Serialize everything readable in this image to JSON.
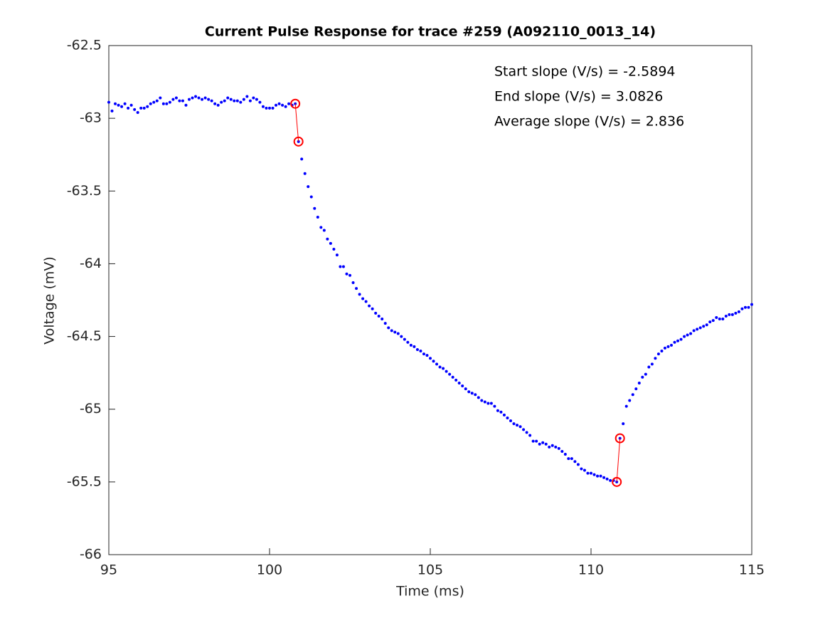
{
  "chart_data": {
    "type": "scatter",
    "title": "Current Pulse Response for trace #259 (A092110_0013_14)",
    "xlabel": "Time (ms)",
    "ylabel": "Voltage (mV)",
    "annotations": [
      "Start slope (V/s) = -2.5894",
      "End slope (V/s) = 3.0826",
      "Average slope (V/s) = 2.836"
    ],
    "xlim": [
      95,
      115
    ],
    "xticks": [
      95,
      100,
      105,
      110,
      115
    ],
    "ylim": [
      -66,
      -62.5
    ],
    "yticks": [
      -66,
      -65.5,
      -65,
      -64.5,
      -64,
      -63.5,
      -63,
      -62.5
    ],
    "series": [
      {
        "color": "#0000ff",
        "marker": "dot",
        "line": false,
        "x": [
          95,
          95.1,
          95.2,
          95.3,
          95.4,
          95.5,
          95.6,
          95.7,
          95.8,
          95.9,
          96,
          96.1,
          96.2,
          96.3,
          96.4,
          96.5,
          96.6,
          96.7,
          96.8,
          96.9,
          97,
          97.1,
          97.2,
          97.3,
          97.4,
          97.5,
          97.6,
          97.7,
          97.8,
          97.9,
          98,
          98.1,
          98.2,
          98.3,
          98.4,
          98.5,
          98.6,
          98.7,
          98.8,
          98.9,
          99,
          99.1,
          99.2,
          99.3,
          99.4,
          99.5,
          99.6,
          99.7,
          99.8,
          99.9,
          100,
          100.1,
          100.2,
          100.3,
          100.4,
          100.5,
          100.6,
          100.7,
          100.8,
          100.9,
          101,
          101.1,
          101.2,
          101.3,
          101.4,
          101.5,
          101.6,
          101.7,
          101.8,
          101.9,
          102,
          102.1,
          102.2,
          102.3,
          102.4,
          102.5,
          102.6,
          102.7,
          102.8,
          102.9,
          103,
          103.1,
          103.2,
          103.3,
          103.4,
          103.5,
          103.6,
          103.7,
          103.8,
          103.9,
          104,
          104.1,
          104.2,
          104.3,
          104.4,
          104.5,
          104.6,
          104.7,
          104.8,
          104.9,
          105,
          105.1,
          105.2,
          105.3,
          105.4,
          105.5,
          105.6,
          105.7,
          105.8,
          105.9,
          106,
          106.1,
          106.2,
          106.3,
          106.4,
          106.5,
          106.6,
          106.7,
          106.8,
          106.9,
          107,
          107.1,
          107.2,
          107.3,
          107.4,
          107.5,
          107.6,
          107.7,
          107.8,
          107.9,
          108,
          108.1,
          108.2,
          108.3,
          108.4,
          108.5,
          108.6,
          108.7,
          108.8,
          108.9,
          109,
          109.1,
          109.2,
          109.3,
          109.4,
          109.5,
          109.6,
          109.7,
          109.8,
          109.9,
          110,
          110.1,
          110.2,
          110.3,
          110.4,
          110.5,
          110.6,
          110.7,
          110.8,
          110.9,
          111,
          111.1,
          111.2,
          111.3,
          111.4,
          111.5,
          111.6,
          111.7,
          111.8,
          111.9,
          112,
          112.1,
          112.2,
          112.3,
          112.4,
          112.5,
          112.6,
          112.7,
          112.8,
          112.9,
          113,
          113.1,
          113.2,
          113.3,
          113.4,
          113.5,
          113.6,
          113.7,
          113.8,
          113.9,
          114,
          114.1,
          114.2,
          114.3,
          114.4,
          114.5,
          114.6,
          114.7,
          114.8,
          114.9,
          115
        ],
        "values": [
          -62.89,
          -62.95,
          -62.9,
          -62.91,
          -62.92,
          -62.9,
          -62.93,
          -62.91,
          -62.94,
          -62.96,
          -62.93,
          -62.93,
          -62.92,
          -62.9,
          -62.89,
          -62.88,
          -62.86,
          -62.9,
          -62.9,
          -62.89,
          -62.87,
          -62.86,
          -62.88,
          -62.88,
          -62.91,
          -62.87,
          -62.86,
          -62.85,
          -62.86,
          -62.87,
          -62.86,
          -62.87,
          -62.88,
          -62.9,
          -62.91,
          -62.89,
          -62.88,
          -62.86,
          -62.87,
          -62.88,
          -62.88,
          -62.89,
          -62.87,
          -62.85,
          -62.88,
          -62.86,
          -62.87,
          -62.89,
          -62.92,
          -62.93,
          -62.93,
          -62.93,
          -62.91,
          -62.9,
          -62.91,
          -62.92,
          -62.9,
          -62.91,
          -62.9,
          -63.16,
          -63.28,
          -63.38,
          -63.47,
          -63.54,
          -63.62,
          -63.68,
          -63.75,
          -63.77,
          -63.83,
          -63.86,
          -63.9,
          -63.94,
          -64.02,
          -64.02,
          -64.07,
          -64.08,
          -64.13,
          -64.17,
          -64.21,
          -64.24,
          -64.26,
          -64.29,
          -64.31,
          -64.34,
          -64.36,
          -64.38,
          -64.41,
          -64.44,
          -64.46,
          -64.47,
          -64.48,
          -64.5,
          -64.52,
          -64.54,
          -64.56,
          -64.57,
          -64.59,
          -64.6,
          -64.62,
          -64.63,
          -64.65,
          -64.67,
          -64.69,
          -64.71,
          -64.72,
          -64.74,
          -64.76,
          -64.78,
          -64.8,
          -64.82,
          -64.84,
          -64.86,
          -64.88,
          -64.89,
          -64.9,
          -64.92,
          -64.94,
          -64.95,
          -64.96,
          -64.96,
          -64.98,
          -65.01,
          -65.02,
          -65.04,
          -65.06,
          -65.08,
          -65.1,
          -65.11,
          -65.12,
          -65.14,
          -65.16,
          -65.18,
          -65.22,
          -65.22,
          -65.24,
          -65.23,
          -65.24,
          -65.26,
          -65.25,
          -65.26,
          -65.27,
          -65.29,
          -65.31,
          -65.34,
          -65.34,
          -65.36,
          -65.38,
          -65.41,
          -65.42,
          -65.44,
          -65.44,
          -65.45,
          -65.46,
          -65.46,
          -65.47,
          -65.48,
          -65.49,
          -65.49,
          -65.5,
          -65.2,
          -65.1,
          -64.98,
          -64.94,
          -64.9,
          -64.86,
          -64.82,
          -64.78,
          -64.76,
          -64.71,
          -64.69,
          -64.65,
          -64.62,
          -64.6,
          -64.58,
          -64.57,
          -64.56,
          -64.54,
          -64.53,
          -64.52,
          -64.5,
          -64.49,
          -64.48,
          -64.46,
          -64.45,
          -64.44,
          -64.43,
          -64.42,
          -64.4,
          -64.39,
          -64.37,
          -64.38,
          -64.38,
          -64.36,
          -64.35,
          -64.35,
          -64.34,
          -64.33,
          -64.31,
          -64.3,
          -64.3,
          -64.28
        ]
      },
      {
        "color": "#ff0000",
        "marker": "circle",
        "line": true,
        "x": [
          100.8,
          100.9
        ],
        "values": [
          -62.9,
          -63.16
        ]
      },
      {
        "color": "#ff0000",
        "marker": "circle",
        "line": true,
        "x": [
          110.8,
          110.9
        ],
        "values": [
          -65.5,
          -65.2
        ]
      }
    ]
  }
}
